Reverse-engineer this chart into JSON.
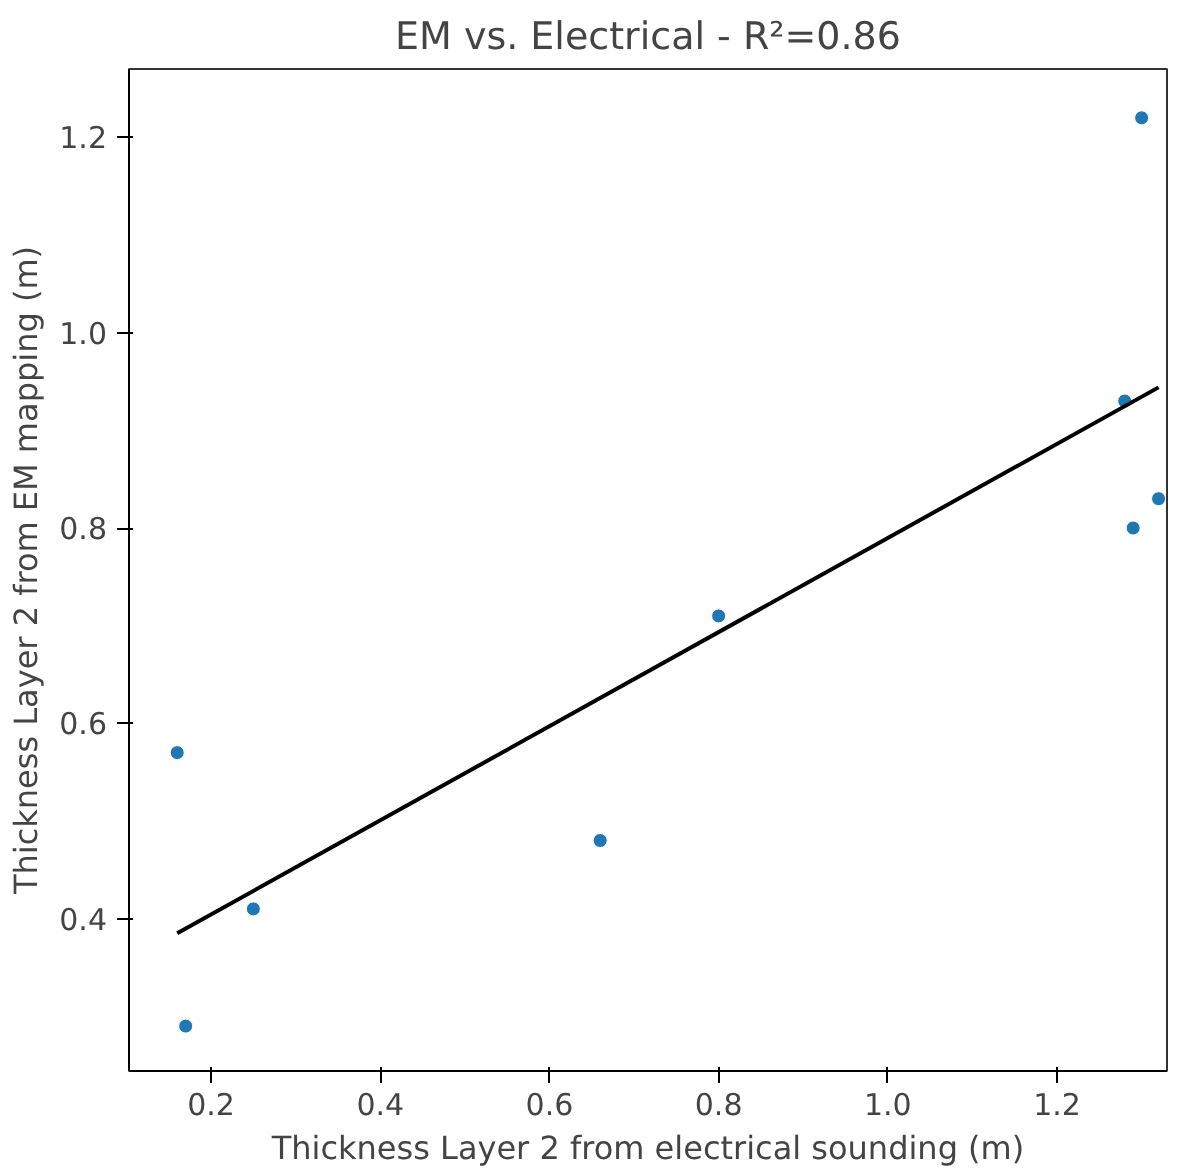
{
  "chart_data": {
    "type": "scatter",
    "title": "EM vs. Electrical - R²=0.86",
    "xlabel": "Thickness Layer 2 from electrical sounding (m)",
    "ylabel": "Thickness Layer 2 from EM mapping (m)",
    "xlim": [
      0.103,
      1.33
    ],
    "ylim": [
      0.244,
      1.27
    ],
    "xticks": [
      0.2,
      0.4,
      0.6,
      0.8,
      {
        "value": 1,
        "label": "1.0"
      },
      1.2
    ],
    "yticks": [
      0.4,
      0.6,
      0.8,
      {
        "value": 1,
        "label": "1.0"
      },
      1.2
    ],
    "grid": false,
    "series": [
      {
        "color": "#1f77b4",
        "marker": "circle",
        "x": [
          0.16,
          0.17,
          0.25,
          0.66,
          0.8,
          1.28,
          1.29,
          1.3,
          1.32
        ],
        "values": [
          0.57,
          0.29,
          0.41,
          0.48,
          0.71,
          0.93,
          0.8,
          1.22,
          0.83
        ]
      },
      {
        "type": "line",
        "color": "#000000",
        "line_style": "solid",
        "x": [
          0.16,
          1.32
        ],
        "values": [
          0.385,
          0.944
        ]
      }
    ]
  }
}
